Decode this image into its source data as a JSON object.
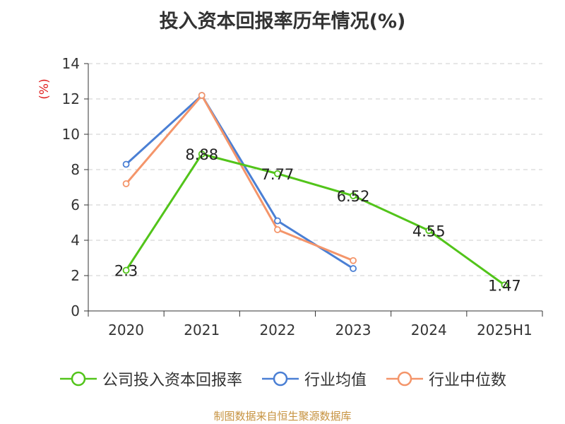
{
  "title": "投入资本回报率历年情况(%)",
  "source_text": "制图数据来自恒生聚源数据库",
  "colors": {
    "company": "#52c41a",
    "industry_avg": "#4a7fd4",
    "industry_median": "#f4956a",
    "grid": "#cccccc",
    "axis": "#333333",
    "unit": "#e02020"
  },
  "chart_data": {
    "type": "line",
    "categories": [
      "2020",
      "2021",
      "2022",
      "2023",
      "2024",
      "2025H1"
    ],
    "ylabel": "(%)",
    "ylim": [
      0,
      14
    ],
    "yticks": [
      0,
      2,
      4,
      6,
      8,
      10,
      12,
      14
    ],
    "grid": true,
    "legend_position": "bottom",
    "series": [
      {
        "name": "公司投入资本回报率",
        "color": "#52c41a",
        "values": [
          2.3,
          8.88,
          7.77,
          6.52,
          4.55,
          1.47
        ],
        "labels": [
          "2.3",
          "8.88",
          "7.77",
          "6.52",
          "4.55",
          "1.47"
        ]
      },
      {
        "name": "行业均值",
        "color": "#4a7fd4",
        "values": [
          8.3,
          12.2,
          5.1,
          2.4,
          null,
          null
        ]
      },
      {
        "name": "行业中位数",
        "color": "#f4956a",
        "values": [
          7.2,
          12.2,
          4.6,
          2.85,
          null,
          null
        ]
      }
    ]
  }
}
